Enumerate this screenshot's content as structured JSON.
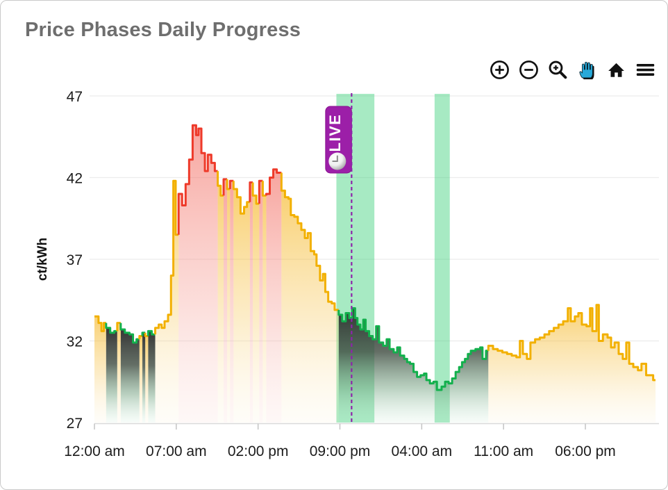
{
  "card": {
    "title": "Price Phases Daily Progress"
  },
  "toolbar": {
    "icons": [
      {
        "name": "zoom-in-icon"
      },
      {
        "name": "zoom-out-icon"
      },
      {
        "name": "box-zoom-icon"
      },
      {
        "name": "pan-hand-icon",
        "active": true,
        "active_color": "#27a9d9"
      },
      {
        "name": "home-reset-icon"
      },
      {
        "name": "menu-icon"
      }
    ],
    "icon_color": "#111111"
  },
  "chart_data": {
    "type": "area",
    "subtype": "step-line-phases",
    "title": "Price Phases Daily Progress",
    "ylabel": "ct/kWh",
    "ylim": [
      27,
      47
    ],
    "yticks": [
      47,
      42,
      37,
      32,
      27
    ],
    "xlim_hours": [
      0,
      48
    ],
    "xticks": [
      {
        "hour": 0,
        "label": "12:00 am"
      },
      {
        "hour": 7,
        "label": "07:00 am"
      },
      {
        "hour": 14,
        "label": "02:00 pm"
      },
      {
        "hour": 21,
        "label": "09:00 pm"
      },
      {
        "hour": 28,
        "label": "04:00 am"
      },
      {
        "hour": 35,
        "label": "11:00 am"
      },
      {
        "hour": 42,
        "label": "06:00 pm"
      }
    ],
    "grid": true,
    "live_marker": {
      "hour": 22.0,
      "label": "LIVE",
      "line_color": "#8e24aa",
      "badge_color": "#9c1fa8"
    },
    "cheap_window_bands": [
      {
        "start_hour": 20.7,
        "end_hour": 23.95
      },
      {
        "start_hour": 29.1,
        "end_hour": 30.4
      }
    ],
    "band_color": "#2ecc71",
    "phase_colors": {
      "y": "#f2b000",
      "r": "#ee3a2a",
      "g": "#12b04c"
    },
    "series_unit": "ct/kWh",
    "series": [
      [
        0.0,
        33.5,
        "y"
      ],
      [
        0.35,
        33.1,
        "y"
      ],
      [
        0.6,
        32.6,
        "y"
      ],
      [
        0.8,
        33.1,
        "y"
      ],
      [
        1.0,
        32.8,
        "g"
      ],
      [
        1.35,
        32.5,
        "g"
      ],
      [
        1.7,
        32.6,
        "g"
      ],
      [
        1.95,
        33.1,
        "y"
      ],
      [
        2.25,
        32.7,
        "g"
      ],
      [
        2.6,
        32.5,
        "g"
      ],
      [
        3.0,
        32.4,
        "g"
      ],
      [
        3.3,
        31.9,
        "g"
      ],
      [
        3.6,
        32.1,
        "g"
      ],
      [
        3.85,
        32.3,
        "y"
      ],
      [
        4.1,
        32.5,
        "g"
      ],
      [
        4.35,
        32.3,
        "y"
      ],
      [
        4.6,
        32.6,
        "g"
      ],
      [
        4.9,
        32.4,
        "g"
      ],
      [
        5.2,
        32.8,
        "y"
      ],
      [
        5.5,
        33.0,
        "y"
      ],
      [
        5.75,
        32.8,
        "y"
      ],
      [
        6.0,
        33.2,
        "y"
      ],
      [
        6.3,
        33.6,
        "y"
      ],
      [
        6.55,
        36.0,
        "y"
      ],
      [
        6.75,
        41.8,
        "y"
      ],
      [
        6.95,
        38.5,
        "y"
      ],
      [
        7.2,
        41.0,
        "r"
      ],
      [
        7.5,
        40.3,
        "r"
      ],
      [
        7.8,
        41.6,
        "r"
      ],
      [
        8.1,
        43.1,
        "r"
      ],
      [
        8.4,
        45.2,
        "r"
      ],
      [
        8.7,
        44.6,
        "r"
      ],
      [
        8.9,
        45.0,
        "r"
      ],
      [
        9.15,
        43.5,
        "r"
      ],
      [
        9.45,
        42.4,
        "r"
      ],
      [
        9.7,
        43.4,
        "r"
      ],
      [
        10.0,
        42.9,
        "r"
      ],
      [
        10.3,
        42.4,
        "r"
      ],
      [
        10.55,
        41.5,
        "y"
      ],
      [
        10.8,
        40.9,
        "y"
      ],
      [
        11.05,
        41.9,
        "r"
      ],
      [
        11.35,
        41.3,
        "y"
      ],
      [
        11.6,
        41.8,
        "r"
      ],
      [
        11.9,
        41.3,
        "y"
      ],
      [
        12.2,
        40.8,
        "y"
      ],
      [
        12.5,
        39.8,
        "y"
      ],
      [
        12.8,
        40.2,
        "y"
      ],
      [
        13.05,
        40.5,
        "y"
      ],
      [
        13.3,
        41.7,
        "r"
      ],
      [
        13.55,
        40.9,
        "y"
      ],
      [
        13.85,
        40.4,
        "y"
      ],
      [
        14.1,
        41.8,
        "r"
      ],
      [
        14.4,
        40.9,
        "y"
      ],
      [
        14.7,
        41.0,
        "r"
      ],
      [
        15.0,
        42.0,
        "r"
      ],
      [
        15.3,
        42.5,
        "r"
      ],
      [
        15.6,
        42.3,
        "r"
      ],
      [
        16.0,
        41.2,
        "y"
      ],
      [
        16.3,
        40.8,
        "y"
      ],
      [
        16.6,
        40.7,
        "y"
      ],
      [
        16.8,
        39.7,
        "y"
      ],
      [
        17.1,
        39.6,
        "y"
      ],
      [
        17.4,
        39.2,
        "y"
      ],
      [
        17.7,
        38.8,
        "y"
      ],
      [
        18.0,
        38.3,
        "y"
      ],
      [
        18.25,
        38.6,
        "y"
      ],
      [
        18.5,
        37.5,
        "y"
      ],
      [
        18.8,
        37.3,
        "y"
      ],
      [
        19.0,
        36.6,
        "y"
      ],
      [
        19.3,
        35.7,
        "y"
      ],
      [
        19.55,
        36.1,
        "y"
      ],
      [
        19.75,
        35.0,
        "y"
      ],
      [
        20.0,
        34.4,
        "y"
      ],
      [
        20.3,
        34.3,
        "y"
      ],
      [
        20.55,
        33.9,
        "y"
      ],
      [
        20.9,
        33.6,
        "g"
      ],
      [
        21.2,
        33.2,
        "g"
      ],
      [
        21.5,
        33.7,
        "g"
      ],
      [
        21.8,
        33.4,
        "g"
      ],
      [
        22.05,
        34.0,
        "g"
      ],
      [
        22.3,
        33.4,
        "g"
      ],
      [
        22.5,
        33.0,
        "g"
      ],
      [
        22.75,
        32.7,
        "g"
      ],
      [
        23.0,
        33.3,
        "g"
      ],
      [
        23.2,
        32.6,
        "g"
      ],
      [
        23.5,
        32.3,
        "g"
      ],
      [
        23.8,
        32.1,
        "g"
      ],
      [
        24.1,
        32.9,
        "g"
      ],
      [
        24.35,
        31.9,
        "g"
      ],
      [
        24.7,
        31.7,
        "g"
      ],
      [
        25.0,
        32.1,
        "g"
      ],
      [
        25.25,
        31.5,
        "g"
      ],
      [
        25.6,
        31.3,
        "g"
      ],
      [
        25.9,
        31.6,
        "g"
      ],
      [
        26.15,
        31.1,
        "g"
      ],
      [
        26.5,
        30.9,
        "g"
      ],
      [
        26.75,
        30.7,
        "g"
      ],
      [
        27.0,
        30.6,
        "g"
      ],
      [
        27.3,
        30.1,
        "g"
      ],
      [
        27.6,
        29.8,
        "g"
      ],
      [
        27.9,
        29.9,
        "g"
      ],
      [
        28.2,
        30.0,
        "g"
      ],
      [
        28.4,
        29.6,
        "g"
      ],
      [
        28.7,
        29.4,
        "g"
      ],
      [
        29.0,
        29.5,
        "g"
      ],
      [
        29.3,
        29.0,
        "g"
      ],
      [
        29.7,
        29.2,
        "g"
      ],
      [
        30.0,
        29.5,
        "g"
      ],
      [
        30.3,
        29.4,
        "g"
      ],
      [
        30.6,
        29.7,
        "g"
      ],
      [
        30.9,
        30.1,
        "g"
      ],
      [
        31.2,
        30.4,
        "g"
      ],
      [
        31.45,
        30.7,
        "g"
      ],
      [
        31.7,
        30.9,
        "g"
      ],
      [
        31.95,
        31.2,
        "g"
      ],
      [
        32.2,
        31.4,
        "g"
      ],
      [
        32.6,
        31.5,
        "g"
      ],
      [
        33.0,
        31.6,
        "g"
      ],
      [
        33.2,
        30.9,
        "g"
      ],
      [
        33.5,
        31.4,
        "g"
      ],
      [
        33.7,
        31.7,
        "y"
      ],
      [
        34.1,
        31.5,
        "y"
      ],
      [
        34.5,
        31.4,
        "y"
      ],
      [
        34.9,
        31.3,
        "y"
      ],
      [
        35.3,
        31.2,
        "y"
      ],
      [
        35.7,
        31.1,
        "y"
      ],
      [
        36.1,
        31.0,
        "y"
      ],
      [
        36.4,
        32.0,
        "y"
      ],
      [
        36.65,
        31.2,
        "y"
      ],
      [
        37.0,
        30.9,
        "y"
      ],
      [
        37.3,
        31.9,
        "y"
      ],
      [
        37.7,
        32.1,
        "y"
      ],
      [
        38.1,
        32.2,
        "y"
      ],
      [
        38.5,
        32.4,
        "y"
      ],
      [
        38.9,
        32.6,
        "y"
      ],
      [
        39.3,
        32.8,
        "y"
      ],
      [
        39.7,
        33.0,
        "y"
      ],
      [
        40.1,
        33.2,
        "y"
      ],
      [
        40.5,
        34.0,
        "y"
      ],
      [
        40.75,
        33.2,
        "y"
      ],
      [
        41.1,
        33.5,
        "y"
      ],
      [
        41.4,
        33.7,
        "y"
      ],
      [
        41.7,
        33.0,
        "y"
      ],
      [
        42.1,
        32.9,
        "y"
      ],
      [
        42.4,
        34.0,
        "y"
      ],
      [
        42.6,
        32.6,
        "y"
      ],
      [
        42.95,
        34.2,
        "y"
      ],
      [
        43.15,
        32.0,
        "y"
      ],
      [
        43.5,
        32.4,
        "y"
      ],
      [
        43.9,
        32.2,
        "y"
      ],
      [
        44.2,
        31.6,
        "y"
      ],
      [
        44.5,
        31.9,
        "y"
      ],
      [
        44.85,
        31.2,
        "y"
      ],
      [
        45.2,
        30.9,
        "y"
      ],
      [
        45.5,
        31.9,
        "y"
      ],
      [
        45.75,
        30.6,
        "y"
      ],
      [
        46.1,
        30.4,
        "y"
      ],
      [
        46.5,
        30.2,
        "y"
      ],
      [
        46.8,
        30.6,
        "y"
      ],
      [
        47.2,
        29.9,
        "y"
      ],
      [
        47.8,
        29.6,
        "y"
      ],
      [
        48.0,
        29.6,
        "y"
      ]
    ],
    "colors": {
      "grid": "#ececec",
      "axis_line": "#d9d9d9",
      "tick": "#c4c4c4",
      "tick_text": "#1c1c1c",
      "title_text": "#6e6e6e"
    }
  }
}
